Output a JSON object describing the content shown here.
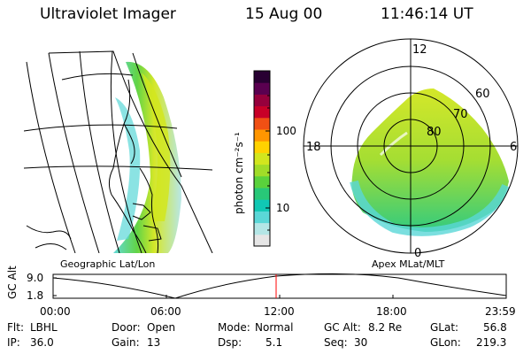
{
  "header": {
    "instrument": "Ultraviolet Imager",
    "date": "15 Aug 00",
    "time": "11:46:14 UT"
  },
  "left_map": {
    "label": "Geographic Lat/Lon"
  },
  "right_map": {
    "label": "Apex MLat/MLT",
    "mlt_labels": {
      "top": "12",
      "left": "18",
      "right": "6",
      "bottom": "0"
    },
    "lat_labels": [
      "60",
      "70",
      "80"
    ]
  },
  "colorbar": {
    "unit_label": "photon cm⁻²s⁻¹",
    "ticks": [
      "100",
      "10"
    ],
    "scale": "log",
    "colors": [
      "#e6e6e6",
      "#b4e6e6",
      "#5ad7d7",
      "#10c8b4",
      "#28c878",
      "#5ad23c",
      "#a0dc28",
      "#d2e61e",
      "#ffd200",
      "#ff9600",
      "#f05014",
      "#c80028",
      "#96003c",
      "#5a0050",
      "#280032"
    ]
  },
  "altitude_panel": {
    "axis_label": "GC Alt",
    "yticks": [
      "9.0",
      "1.8"
    ],
    "xticks": [
      "00:00",
      "06:00",
      "12:00",
      "18:00",
      "23:59"
    ],
    "current_time_marker_color": "#ff0000"
  },
  "status": {
    "flt_label": "Flt:",
    "flt_value": "LBHL",
    "ip_label": "IP:",
    "ip_value": "36.0",
    "door_label": "Door:",
    "door_value": "Open",
    "gain_label": "Gain:",
    "gain_value": "13",
    "mode_label": "Mode:",
    "mode_value": "Normal",
    "dsp_label": "Dsp:",
    "dsp_value": "5.1",
    "gcalt_label": "GC Alt:",
    "gcalt_value": "8.2 Re",
    "seq_label": "Seq:",
    "seq_value": "30",
    "glat_label": "GLat:",
    "glat_value": "56.8",
    "glon_label": "GLon:",
    "glon_value": "219.3"
  }
}
